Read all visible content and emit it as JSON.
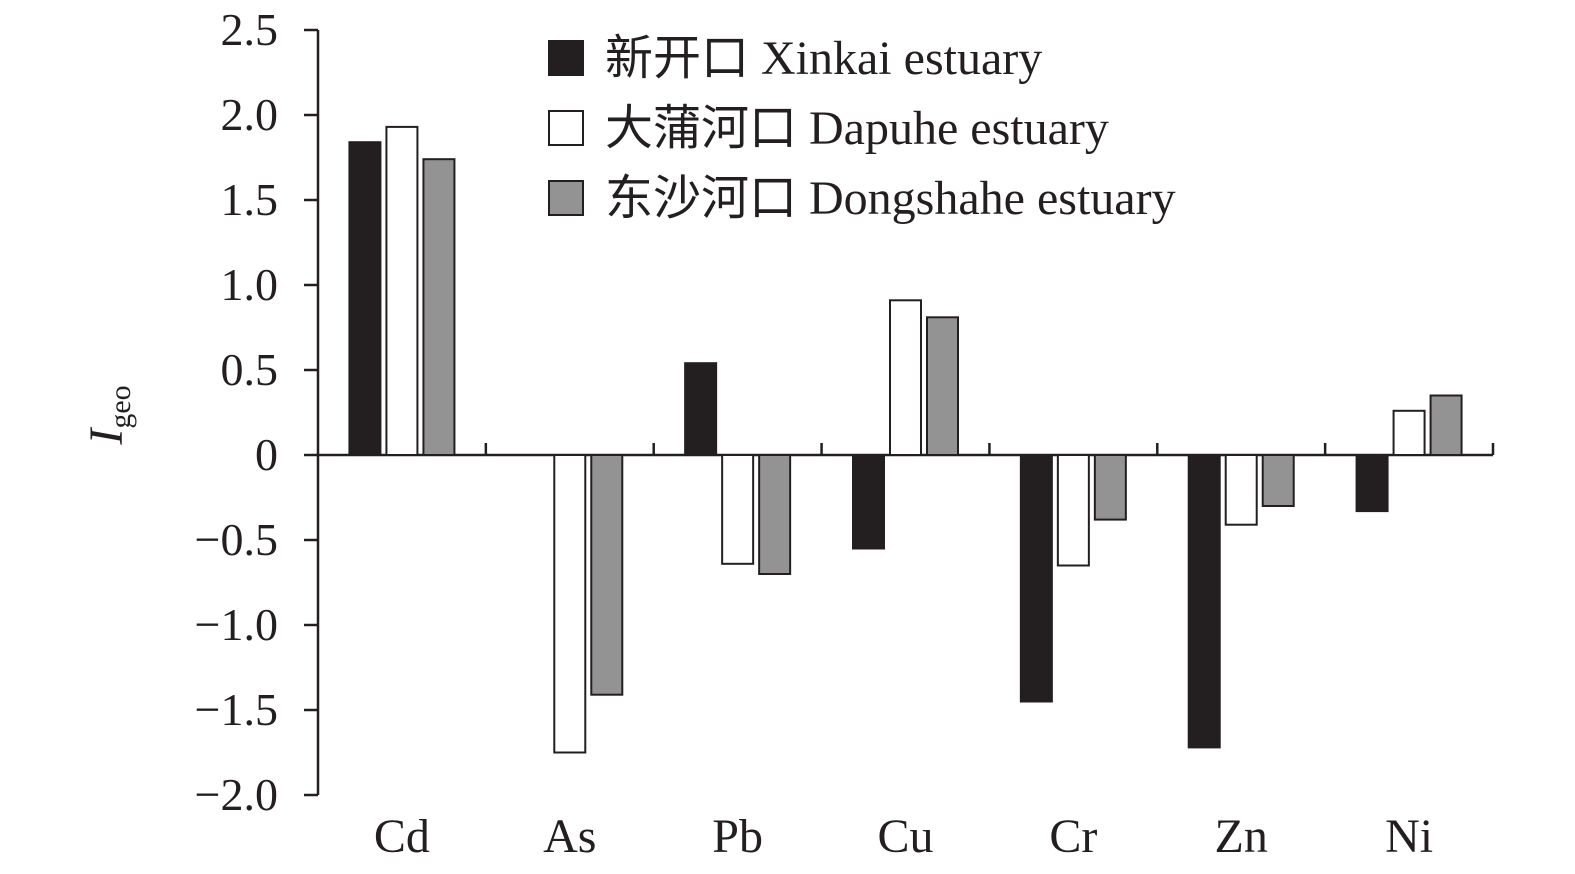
{
  "chart_data": {
    "type": "bar",
    "categories": [
      "Cd",
      "As",
      "Pb",
      "Cu",
      "Cr",
      "Zn",
      "Ni"
    ],
    "series": [
      {
        "name": "新开口 Xinkai estuary",
        "color": "#231f20",
        "values": [
          1.84,
          0,
          0.54,
          -0.55,
          -1.45,
          -1.72,
          -0.33
        ]
      },
      {
        "name": "大蒲河口 Dapuhe estuary",
        "color": "#ffffff",
        "values": [
          1.93,
          -1.75,
          -0.64,
          0.91,
          -0.65,
          -0.41,
          0.26
        ]
      },
      {
        "name": "东沙河口 Dongshahe estuary",
        "color": "#939393",
        "values": [
          1.74,
          -1.41,
          -0.7,
          0.81,
          -0.38,
          -0.3,
          0.35
        ]
      }
    ],
    "ylabel_main": "I",
    "ylabel_sub": "geo",
    "ylim": [
      -2.0,
      2.5
    ],
    "yticks": [
      "2.5",
      "2.0",
      "1.5",
      "1.0",
      "0.5",
      "0",
      "−0.5",
      "−1.0",
      "−1.5",
      "−2.0"
    ],
    "ytick_values": [
      2.5,
      2.0,
      1.5,
      1.0,
      0.5,
      0,
      -0.5,
      -1.0,
      -1.5,
      -2.0
    ],
    "grid": false,
    "legend_position": "top-center",
    "colors": {
      "axis": "#231f20",
      "stroke": "#231f20"
    }
  }
}
